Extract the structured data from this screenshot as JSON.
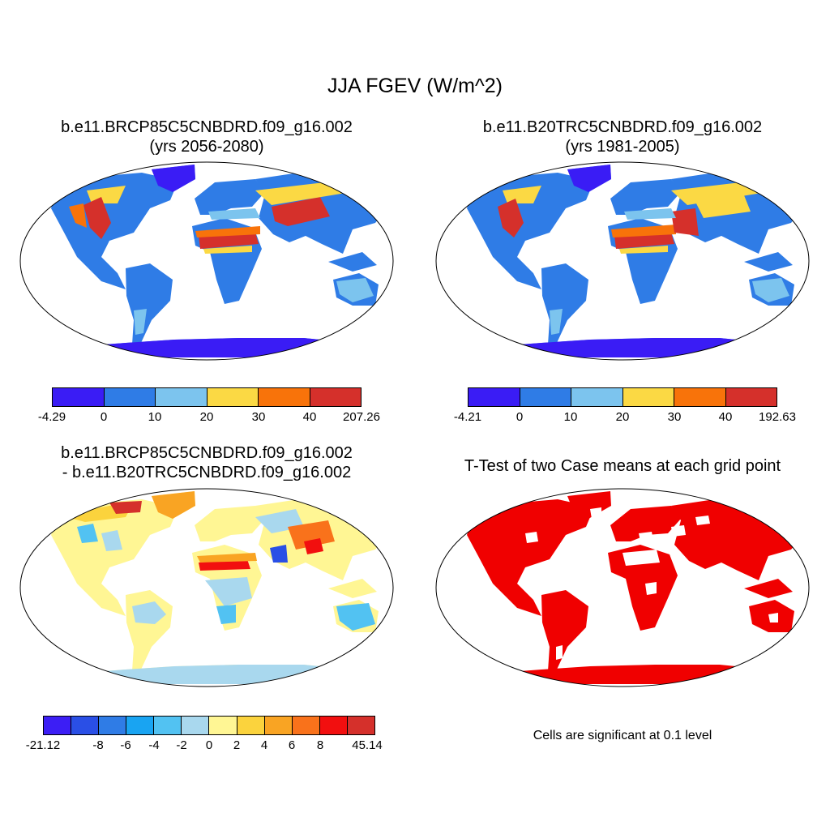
{
  "main_title": "JJA FGEV (W/m^2)",
  "panels": {
    "top_left": {
      "title_line1": "b.e11.BRCP85C5CNBDRD.f09_g16.002",
      "title_line2": "(yrs 2056-2080)",
      "colorbar": {
        "colors": [
          "#3a1cf5",
          "#2f7ce6",
          "#7cc4ee",
          "#fbd944",
          "#f8730a",
          "#d5302b"
        ],
        "labels": [
          "-4.29",
          "0",
          "10",
          "20",
          "30",
          "40",
          "207.26"
        ]
      }
    },
    "top_right": {
      "title_line1": "b.e11.B20TRC5CNBDRD.f09_g16.002",
      "title_line2": "(yrs 1981-2005)",
      "colorbar": {
        "colors": [
          "#3a1cf5",
          "#2f7ce6",
          "#7cc4ee",
          "#fbd944",
          "#f8730a",
          "#d5302b"
        ],
        "labels": [
          "-4.21",
          "0",
          "10",
          "20",
          "30",
          "40",
          "192.63"
        ]
      }
    },
    "bottom_left": {
      "title_line1": "b.e11.BRCP85C5CNBDRD.f09_g16.002",
      "title_line2": "- b.e11.B20TRC5CNBDRD.f09_g16.002",
      "colorbar": {
        "colors": [
          "#3c1ef5",
          "#2a4fe6",
          "#2f7ce6",
          "#19a4f2",
          "#52c2f2",
          "#a9d8ee",
          "#fff694",
          "#fbd33d",
          "#f9a423",
          "#f9721b",
          "#f20f0f",
          "#d5302b"
        ],
        "labels": [
          "-21.12",
          "-8",
          "-6",
          "-4",
          "-2",
          "0",
          "2",
          "4",
          "6",
          "8",
          "45.14"
        ]
      }
    },
    "bottom_right": {
      "title": "T-Test of two Case means at each grid point",
      "note": "Cells are significant at 0.1 level",
      "sig_color": "#f00000"
    }
  }
}
